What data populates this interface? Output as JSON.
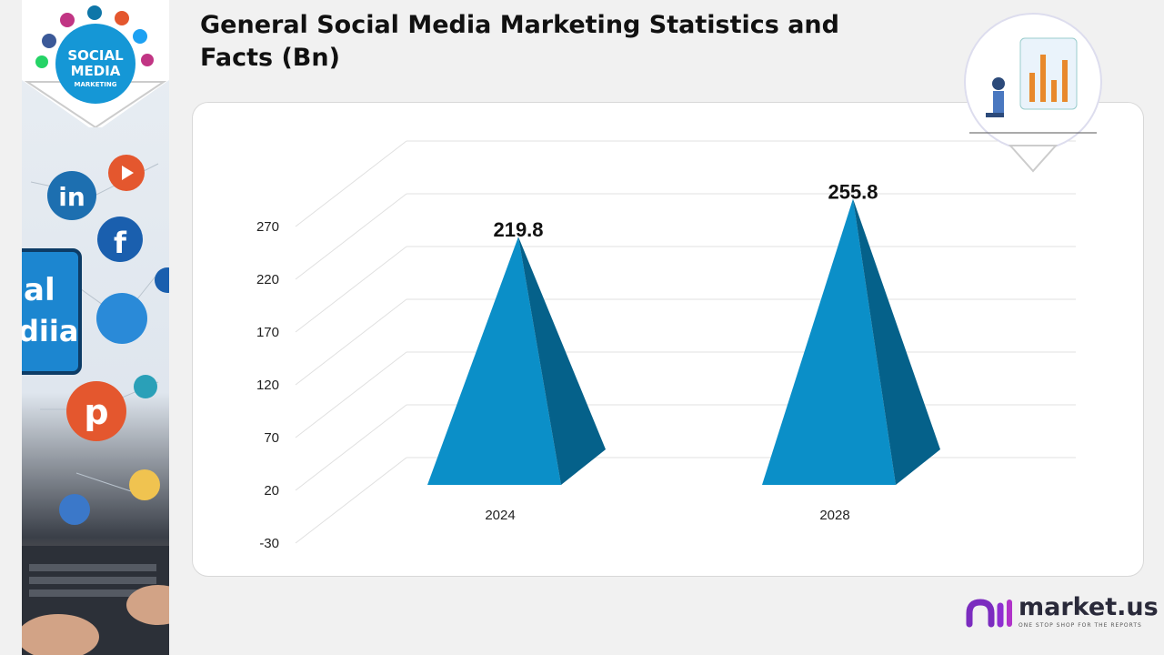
{
  "title": "General Social Media Marketing Statistics and Facts (Bn)",
  "badge": {
    "line1": "SOCIAL",
    "line2": "MEDIA",
    "line3": "MARKETING"
  },
  "left_panel_text": {
    "line1": "al",
    "line2": "diia"
  },
  "logo": {
    "name": "market.us",
    "tagline": "ONE STOP SHOP FOR THE REPORTS"
  },
  "colors": {
    "front": "#0b8fc8",
    "side": "#05618a",
    "gridline": "#e0e0e0",
    "brand": "#7b2cbf"
  },
  "chart_data": {
    "type": "bar",
    "style": "3d-pyramid",
    "title": "General Social Media Marketing Statistics and Facts (Bn)",
    "categories": [
      "2024",
      "2028"
    ],
    "values": [
      219.8,
      255.8
    ],
    "data_labels": [
      "219.8",
      "255.8"
    ],
    "yticks": [
      "-30",
      "20",
      "70",
      "120",
      "170",
      "220",
      "270"
    ],
    "ylim": [
      -30,
      270
    ],
    "grid": true,
    "legend": "none"
  }
}
